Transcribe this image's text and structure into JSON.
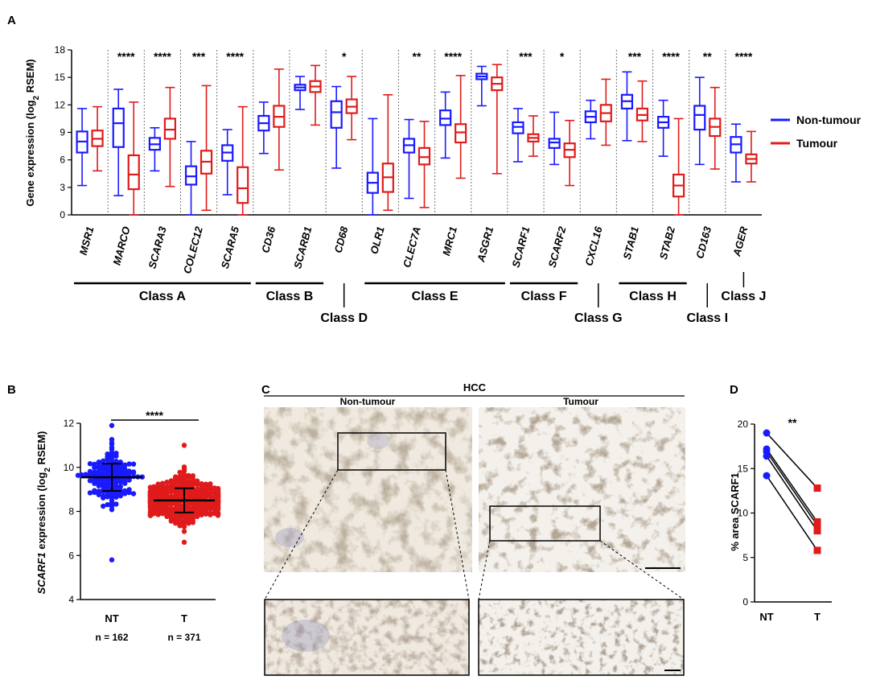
{
  "panels": {
    "A": {
      "letter": "A"
    },
    "B": {
      "letter": "B"
    },
    "C": {
      "letter": "C"
    },
    "D": {
      "letter": "D"
    }
  },
  "colors": {
    "non_tumour": "#1a1aff",
    "tumour": "#e01b1b",
    "ink": "#000000"
  },
  "chart_data": [
    {
      "panel": "A",
      "type": "box",
      "ylabel": "Gene expression (log2 RSEM)",
      "ylabel_main": "Gene expression (log",
      "ylabel_sub": "2",
      "ylabel_tail": " RSEM)",
      "ylim": [
        0,
        18
      ],
      "yticks": [
        "0",
        "3",
        "6",
        "9",
        "12",
        "15",
        "18"
      ],
      "legend": [
        {
          "name": "Non-tumour",
          "color": "#1a1aff"
        },
        {
          "name": "Tumour",
          "color": "#e01b1b"
        }
      ],
      "genes": [
        {
          "gene": "MSR1",
          "sig": "",
          "nt": {
            "min": 3.2,
            "q1": 6.8,
            "med": 8.0,
            "q3": 9.1,
            "max": 11.6
          },
          "t": {
            "min": 4.8,
            "q1": 7.5,
            "med": 8.3,
            "q3": 9.2,
            "max": 11.8
          }
        },
        {
          "gene": "MARCO",
          "sig": "****",
          "nt": {
            "min": 2.1,
            "q1": 7.4,
            "med": 10.0,
            "q3": 11.6,
            "max": 13.7
          },
          "t": {
            "min": 0.0,
            "q1": 2.8,
            "med": 4.4,
            "q3": 6.5,
            "max": 12.3
          }
        },
        {
          "gene": "SCARA3",
          "sig": "****",
          "nt": {
            "min": 4.8,
            "q1": 7.1,
            "med": 7.7,
            "q3": 8.4,
            "max": 9.5
          },
          "t": {
            "min": 3.1,
            "q1": 8.3,
            "med": 9.3,
            "q3": 10.5,
            "max": 13.9
          }
        },
        {
          "gene": "COLEC12",
          "sig": "***",
          "nt": {
            "min": 0.0,
            "q1": 3.3,
            "med": 4.2,
            "q3": 5.3,
            "max": 8.0
          },
          "t": {
            "min": 0.5,
            "q1": 4.5,
            "med": 5.8,
            "q3": 7.0,
            "max": 14.1
          }
        },
        {
          "gene": "SCARA5",
          "sig": "****",
          "nt": {
            "min": 2.2,
            "q1": 5.9,
            "med": 6.8,
            "q3": 7.6,
            "max": 9.3
          },
          "t": {
            "min": 0.0,
            "q1": 1.3,
            "med": 2.9,
            "q3": 5.2,
            "max": 11.8
          }
        },
        {
          "gene": "CD36",
          "sig": "",
          "nt": {
            "min": 6.7,
            "q1": 9.2,
            "med": 10.0,
            "q3": 10.8,
            "max": 12.3
          },
          "t": {
            "min": 4.9,
            "q1": 9.6,
            "med": 10.7,
            "q3": 11.9,
            "max": 15.9
          }
        },
        {
          "gene": "SCARB1",
          "sig": "",
          "nt": {
            "min": 11.5,
            "q1": 13.6,
            "med": 13.9,
            "q3": 14.2,
            "max": 15.1
          },
          "t": {
            "min": 9.8,
            "q1": 13.4,
            "med": 14.0,
            "q3": 14.6,
            "max": 16.3
          }
        },
        {
          "gene": "CD68",
          "sig": "*",
          "nt": {
            "min": 5.1,
            "q1": 9.5,
            "med": 11.2,
            "q3": 12.4,
            "max": 14.0
          },
          "t": {
            "min": 8.2,
            "q1": 11.1,
            "med": 11.8,
            "q3": 12.6,
            "max": 15.1
          }
        },
        {
          "gene": "OLR1",
          "sig": "",
          "nt": {
            "min": 0.0,
            "q1": 2.4,
            "med": 3.5,
            "q3": 4.6,
            "max": 10.5
          },
          "t": {
            "min": 0.5,
            "q1": 2.5,
            "med": 4.1,
            "q3": 5.6,
            "max": 13.1
          }
        },
        {
          "gene": "CLEC7A",
          "sig": "**",
          "nt": {
            "min": 1.8,
            "q1": 6.8,
            "med": 7.6,
            "q3": 8.3,
            "max": 10.4
          },
          "t": {
            "min": 0.8,
            "q1": 5.5,
            "med": 6.3,
            "q3": 7.3,
            "max": 10.2
          }
        },
        {
          "gene": "MRC1",
          "sig": "****",
          "nt": {
            "min": 6.2,
            "q1": 9.8,
            "med": 10.5,
            "q3": 11.4,
            "max": 13.4
          },
          "t": {
            "min": 4.0,
            "q1": 7.9,
            "med": 9.0,
            "q3": 9.9,
            "max": 15.2
          }
        },
        {
          "gene": "ASGR1",
          "sig": "",
          "nt": {
            "min": 11.9,
            "q1": 14.8,
            "med": 15.1,
            "q3": 15.4,
            "max": 16.2
          },
          "t": {
            "min": 4.5,
            "q1": 13.6,
            "med": 14.3,
            "q3": 15.0,
            "max": 16.4
          }
        },
        {
          "gene": "SCARF1",
          "sig": "***",
          "nt": {
            "min": 5.8,
            "q1": 8.9,
            "med": 9.6,
            "q3": 10.1,
            "max": 11.6
          },
          "t": {
            "min": 6.4,
            "q1": 8.0,
            "med": 8.4,
            "q3": 8.8,
            "max": 10.8
          }
        },
        {
          "gene": "SCARF2",
          "sig": "*",
          "nt": {
            "min": 5.5,
            "q1": 7.3,
            "med": 7.9,
            "q3": 8.3,
            "max": 11.2
          },
          "t": {
            "min": 3.2,
            "q1": 6.3,
            "med": 7.1,
            "q3": 7.8,
            "max": 10.3
          }
        },
        {
          "gene": "CXCL16",
          "sig": "",
          "nt": {
            "min": 8.3,
            "q1": 10.1,
            "med": 10.7,
            "q3": 11.3,
            "max": 12.5
          },
          "t": {
            "min": 7.6,
            "q1": 10.2,
            "med": 11.1,
            "q3": 12.0,
            "max": 14.8
          }
        },
        {
          "gene": "STAB1",
          "sig": "***",
          "nt": {
            "min": 8.1,
            "q1": 11.6,
            "med": 12.4,
            "q3": 13.1,
            "max": 15.6
          },
          "t": {
            "min": 8.0,
            "q1": 10.3,
            "med": 10.9,
            "q3": 11.6,
            "max": 14.6
          }
        },
        {
          "gene": "STAB2",
          "sig": "****",
          "nt": {
            "min": 6.4,
            "q1": 9.5,
            "med": 10.1,
            "q3": 10.7,
            "max": 12.5
          },
          "t": {
            "min": 0.0,
            "q1": 2.0,
            "med": 3.2,
            "q3": 4.4,
            "max": 10.5
          }
        },
        {
          "gene": "CD163",
          "sig": "**",
          "nt": {
            "min": 5.5,
            "q1": 9.3,
            "med": 10.9,
            "q3": 11.9,
            "max": 15.0
          },
          "t": {
            "min": 5.0,
            "q1": 8.6,
            "med": 9.6,
            "q3": 10.5,
            "max": 13.9
          }
        },
        {
          "gene": "AGER",
          "sig": "****",
          "nt": {
            "min": 3.6,
            "q1": 6.8,
            "med": 7.7,
            "q3": 8.5,
            "max": 9.9
          },
          "t": {
            "min": 3.6,
            "q1": 5.6,
            "med": 6.1,
            "q3": 6.6,
            "max": 9.1
          }
        }
      ],
      "classes": [
        {
          "name": "Class A",
          "from": 0,
          "to": 4,
          "row": 1
        },
        {
          "name": "Class B",
          "from": 5,
          "to": 6,
          "row": 1
        },
        {
          "name": "Class D",
          "from": 7,
          "to": 7,
          "row": 2
        },
        {
          "name": "Class E",
          "from": 8,
          "to": 11,
          "row": 1
        },
        {
          "name": "Class F",
          "from": 12,
          "to": 13,
          "row": 1
        },
        {
          "name": "Class G",
          "from": 14,
          "to": 14,
          "row": 2
        },
        {
          "name": "Class H",
          "from": 15,
          "to": 16,
          "row": 1
        },
        {
          "name": "Class I",
          "from": 17,
          "to": 17,
          "row": 2
        },
        {
          "name": "Class J",
          "from": 18,
          "to": 18,
          "row": 1.5
        }
      ]
    },
    {
      "panel": "B",
      "type": "scatter",
      "ylabel_gene": "SCARF1",
      "ylabel_rest": " expression (log",
      "ylabel_sub": "2",
      "ylabel_tail": " RSEM)",
      "ylim": [
        4,
        12
      ],
      "yticks": [
        "4",
        "6",
        "8",
        "10",
        "12"
      ],
      "significance": "****",
      "groups": [
        {
          "label": "NT",
          "n": "n = 162",
          "color": "#1a1aff",
          "mean": 9.55,
          "sd": 0.62,
          "count": 162,
          "min": 5.8,
          "max": 11.9
        },
        {
          "label": "T",
          "n": "n = 371",
          "color": "#e01b1b",
          "mean": 8.5,
          "sd": 0.55,
          "count": 371,
          "min": 6.6,
          "max": 11.0
        }
      ]
    },
    {
      "panel": "D",
      "type": "paired-line",
      "ylabel": "% area SCARF1",
      "ylim": [
        0,
        20
      ],
      "yticks": [
        "0",
        "5",
        "10",
        "15",
        "20"
      ],
      "xlabels": [
        "NT",
        "T"
      ],
      "significance": "**",
      "pairs": [
        [
          19.0,
          12.8
        ],
        [
          17.2,
          9.0
        ],
        [
          16.9,
          8.6
        ],
        [
          16.4,
          8.0
        ],
        [
          14.2,
          5.8
        ]
      ]
    }
  ],
  "panelC": {
    "title": "HCC",
    "left_label": "Non-tumour",
    "right_label": "Tumour"
  }
}
